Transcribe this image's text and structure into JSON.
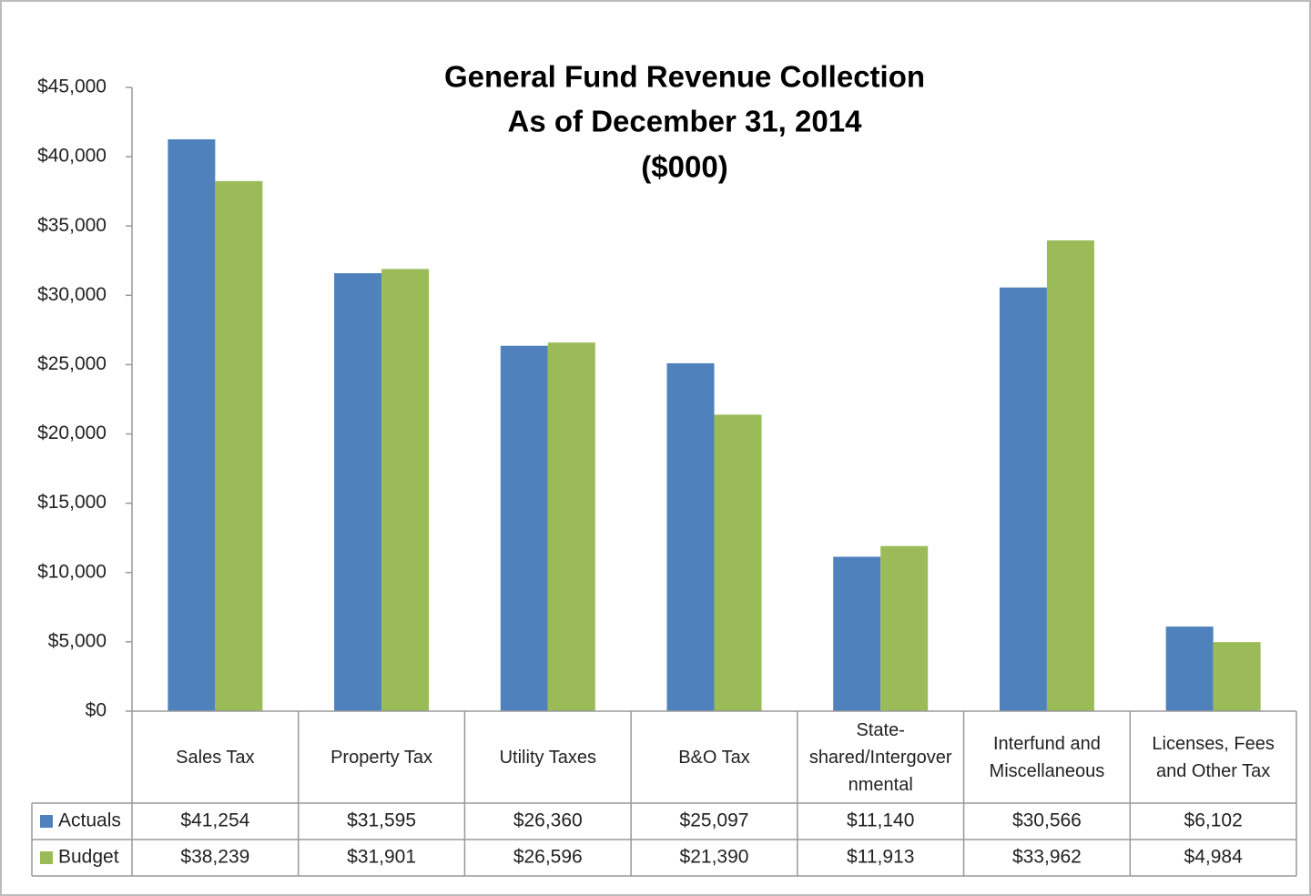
{
  "chart_data": {
    "type": "bar",
    "title": [
      "General Fund Revenue Collection",
      "As of December 31, 2014",
      "($000)"
    ],
    "categories": [
      "Sales Tax",
      "Property Tax",
      "Utility Taxes",
      "B&O Tax",
      "State-shared/Intergovernmental",
      "Interfund and Miscellaneous",
      "Licenses, Fees and Other Tax"
    ],
    "series": [
      {
        "name": "Actuals",
        "color": "#4f81bd",
        "values": [
          41254,
          31595,
          26360,
          25097,
          11140,
          30566,
          6102
        ],
        "value_labels": [
          "$41,254",
          "$31,595",
          "$26,360",
          "$25,097",
          "$11,140",
          "$30,566",
          "$6,102"
        ]
      },
      {
        "name": "Budget",
        "color": "#9bbb59",
        "values": [
          38239,
          31901,
          26596,
          21390,
          11913,
          33962,
          4984
        ],
        "value_labels": [
          "$38,239",
          "$31,901",
          "$26,596",
          "$21,390",
          "$11,913",
          "$33,962",
          "$4,984"
        ]
      }
    ],
    "ylim": [
      0,
      45000
    ],
    "yticks": [
      {
        "value": 0,
        "label": "$0"
      },
      {
        "value": 5000,
        "label": "$5,000"
      },
      {
        "value": 10000,
        "label": "$10,000"
      },
      {
        "value": 15000,
        "label": "$15,000"
      },
      {
        "value": 20000,
        "label": "$20,000"
      },
      {
        "value": 25000,
        "label": "$25,000"
      },
      {
        "value": 30000,
        "label": "$30,000"
      },
      {
        "value": 35000,
        "label": "$35,000"
      },
      {
        "value": 40000,
        "label": "$40,000"
      },
      {
        "value": 45000,
        "label": "$45,000"
      }
    ],
    "grid": false
  }
}
